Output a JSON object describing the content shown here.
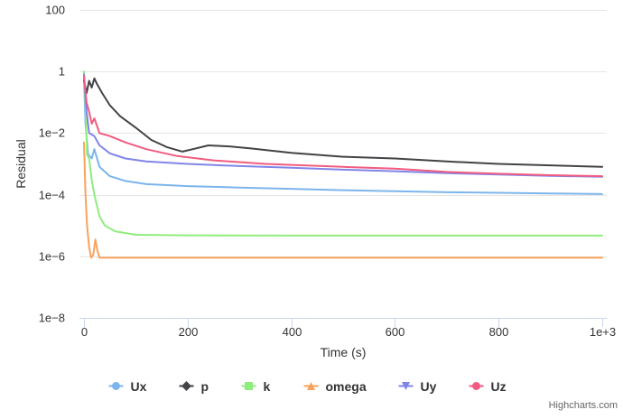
{
  "chart_data": {
    "type": "line",
    "title": "",
    "xlabel": "Time (s)",
    "ylabel": "Residual",
    "y_scale": "log",
    "xlim": [
      0,
      1000
    ],
    "ylim": [
      1e-08,
      100
    ],
    "x_ticks": [
      0,
      200,
      400,
      600,
      800,
      1000
    ],
    "x_tick_labels": [
      "0",
      "200",
      "400",
      "600",
      "800",
      "1e+3"
    ],
    "y_ticks": [
      1e-08,
      1e-06,
      0.0001,
      0.01,
      1,
      100
    ],
    "y_tick_labels": [
      "1e−8",
      "1e−6",
      "1e−4",
      "1e−2",
      "1",
      "100"
    ],
    "grid": "horizontal",
    "legend_position": "bottom-center",
    "series": [
      {
        "name": "Ux",
        "color": "#7cb5ec",
        "marker": "circle",
        "points": [
          [
            0,
            0.6
          ],
          [
            3,
            0.02
          ],
          [
            8,
            0.002
          ],
          [
            15,
            0.0015
          ],
          [
            20,
            0.003
          ],
          [
            30,
            0.0008
          ],
          [
            50,
            0.0004
          ],
          [
            80,
            0.00028
          ],
          [
            120,
            0.00022
          ],
          [
            200,
            0.00019
          ],
          [
            300,
            0.00017
          ],
          [
            400,
            0.000155
          ],
          [
            500,
            0.00014
          ],
          [
            600,
            0.00013
          ],
          [
            700,
            0.00012
          ],
          [
            800,
            0.000115
          ],
          [
            900,
            0.00011
          ],
          [
            1000,
            0.000105
          ]
        ]
      },
      {
        "name": "p",
        "color": "#434348",
        "marker": "diamond",
        "points": [
          [
            0,
            0.5
          ],
          [
            5,
            0.2
          ],
          [
            10,
            0.5
          ],
          [
            15,
            0.3
          ],
          [
            20,
            0.6
          ],
          [
            25,
            0.4
          ],
          [
            35,
            0.2
          ],
          [
            50,
            0.08
          ],
          [
            70,
            0.035
          ],
          [
            100,
            0.015
          ],
          [
            130,
            0.006
          ],
          [
            160,
            0.0035
          ],
          [
            190,
            0.0025
          ],
          [
            210,
            0.003
          ],
          [
            240,
            0.004
          ],
          [
            280,
            0.0037
          ],
          [
            320,
            0.0032
          ],
          [
            400,
            0.0023
          ],
          [
            500,
            0.0017
          ],
          [
            600,
            0.0015
          ],
          [
            700,
            0.0012
          ],
          [
            800,
            0.001
          ],
          [
            900,
            0.0009
          ],
          [
            1000,
            0.0008
          ]
        ]
      },
      {
        "name": "k",
        "color": "#90ed7d",
        "marker": "square",
        "points": [
          [
            0,
            1
          ],
          [
            3,
            0.1
          ],
          [
            6,
            0.002
          ],
          [
            10,
            0.0015
          ],
          [
            15,
            0.0003
          ],
          [
            20,
            0.0001
          ],
          [
            30,
            2e-05
          ],
          [
            40,
            1e-05
          ],
          [
            60,
            6.5e-06
          ],
          [
            100,
            5e-06
          ],
          [
            200,
            4.8e-06
          ],
          [
            400,
            4.7e-06
          ],
          [
            600,
            4.7e-06
          ],
          [
            800,
            4.7e-06
          ],
          [
            1000,
            4.7e-06
          ]
        ]
      },
      {
        "name": "omega",
        "color": "#f7a35c",
        "marker": "triangle",
        "points": [
          [
            0,
            0.005
          ],
          [
            3,
            0.0001
          ],
          [
            6,
            1e-05
          ],
          [
            10,
            2e-06
          ],
          [
            14,
            9e-07
          ],
          [
            18,
            1.1e-06
          ],
          [
            22,
            3.5e-06
          ],
          [
            26,
            1.5e-06
          ],
          [
            30,
            9e-07
          ],
          [
            60,
            9e-07
          ],
          [
            200,
            9e-07
          ],
          [
            400,
            9e-07
          ],
          [
            600,
            9e-07
          ],
          [
            800,
            9e-07
          ],
          [
            1000,
            9e-07
          ]
        ]
      },
      {
        "name": "Uy",
        "color": "#8085e9",
        "marker": "triangle-down",
        "points": [
          [
            0,
            0.8
          ],
          [
            5,
            0.05
          ],
          [
            10,
            0.01
          ],
          [
            20,
            0.008
          ],
          [
            30,
            0.004
          ],
          [
            50,
            0.0022
          ],
          [
            80,
            0.0015
          ],
          [
            120,
            0.0012
          ],
          [
            200,
            0.001
          ],
          [
            300,
            0.00085
          ],
          [
            400,
            0.00075
          ],
          [
            500,
            0.00065
          ],
          [
            600,
            0.00058
          ],
          [
            700,
            0.0005
          ],
          [
            800,
            0.00045
          ],
          [
            900,
            0.00041
          ],
          [
            1000,
            0.00038
          ]
        ]
      },
      {
        "name": "Uz",
        "color": "#f15c80",
        "marker": "circle",
        "points": [
          [
            0,
            0.7
          ],
          [
            5,
            0.1
          ],
          [
            10,
            0.05
          ],
          [
            15,
            0.02
          ],
          [
            20,
            0.03
          ],
          [
            30,
            0.01
          ],
          [
            50,
            0.008
          ],
          [
            80,
            0.005
          ],
          [
            120,
            0.003
          ],
          [
            180,
            0.0018
          ],
          [
            250,
            0.0013
          ],
          [
            350,
            0.001
          ],
          [
            500,
            0.0008
          ],
          [
            600,
            0.0007
          ],
          [
            700,
            0.00055
          ],
          [
            800,
            0.00048
          ],
          [
            900,
            0.00043
          ],
          [
            1000,
            0.0004
          ]
        ]
      }
    ]
  },
  "credits": "Highcharts.com"
}
